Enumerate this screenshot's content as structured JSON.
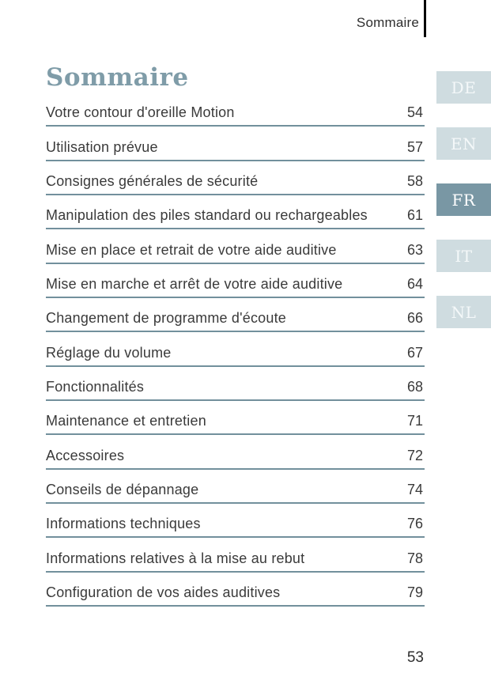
{
  "header": {
    "title": "Sommaire"
  },
  "title": "Sommaire",
  "toc": [
    {
      "label": "Votre contour d'oreille Motion",
      "page": "54"
    },
    {
      "label": "Utilisation prévue",
      "page": "57"
    },
    {
      "label": "Consignes générales de sécurité",
      "page": "58"
    },
    {
      "label": "Manipulation des piles standard ou rechargeables",
      "page": "61"
    },
    {
      "label": "Mise en place et retrait de votre aide auditive",
      "page": "63"
    },
    {
      "label": "Mise en marche et arrêt de votre aide auditive",
      "page": "64"
    },
    {
      "label": "Changement de programme d'écoute",
      "page": "66"
    },
    {
      "label": "Réglage du volume",
      "page": "67"
    },
    {
      "label": "Fonctionnalités",
      "page": "68"
    },
    {
      "label": "Maintenance et entretien",
      "page": "71"
    },
    {
      "label": "Accessoires",
      "page": "72"
    },
    {
      "label": "Conseils de dépannage",
      "page": "74"
    },
    {
      "label": "Informations techniques",
      "page": "76"
    },
    {
      "label": "Informations relatives à la mise au rebut",
      "page": "78"
    },
    {
      "label": "Configuration de vos aides auditives",
      "page": "79"
    }
  ],
  "language_tabs": [
    {
      "label": "DE",
      "active": false
    },
    {
      "label": "EN",
      "active": false
    },
    {
      "label": "FR",
      "active": true
    },
    {
      "label": "IT",
      "active": false
    },
    {
      "label": "NL",
      "active": false
    }
  ],
  "page_number": "53",
  "colors": {
    "accent_rule": "#72909c",
    "title_color": "#7f9ca8",
    "tab_inactive_bg": "#cfdce0",
    "tab_active_bg": "#7997a4",
    "tab_text": "#f4f8f9",
    "body_text": "#3a3a3a"
  }
}
